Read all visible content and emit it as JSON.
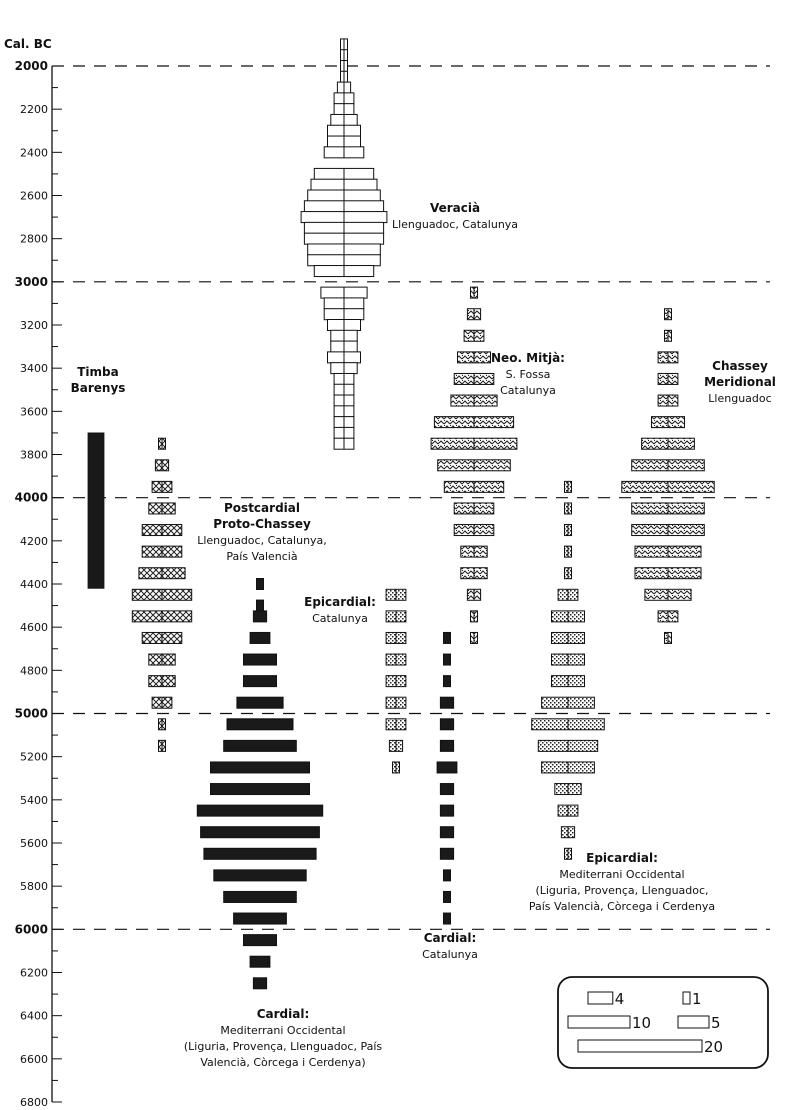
{
  "chart_data": {
    "type": "bar",
    "orientation": "horizontal-battleship",
    "y_axis_label": "Cal. BC",
    "y_range": [
      1950,
      6800
    ],
    "y_ticks": [
      2000,
      2200,
      2400,
      2600,
      2800,
      3000,
      3200,
      3400,
      3600,
      3800,
      4000,
      4200,
      4400,
      4600,
      4800,
      5000,
      5200,
      5400,
      5600,
      5800,
      6000,
      6200,
      6400,
      6600,
      6800
    ],
    "y_bold_ticks": [
      2000,
      3000,
      4000,
      5000,
      6000
    ],
    "dashed_lines": [
      2000,
      3000,
      4000,
      5000,
      6000
    ],
    "legend": {
      "entries": [
        {
          "label": "4",
          "value": 4
        },
        {
          "label": "1",
          "value": 1
        },
        {
          "label": "10",
          "value": 10
        },
        {
          "label": "5",
          "value": 5
        },
        {
          "label": "20",
          "value": 20
        }
      ]
    },
    "groups": [
      {
        "id": "veracia",
        "pattern": "white",
        "center_x": 344,
        "title": [
          "Veracià"
        ],
        "subtitle": [
          "Llenguadoc, Catalunya"
        ],
        "ages": [
          1900,
          1950,
          2000,
          2050,
          2100,
          2150,
          2200,
          2250,
          2300,
          2350,
          2400,
          2450,
          2500,
          2550,
          2600,
          2650,
          2700,
          2750,
          2800,
          2850,
          2900,
          2950,
          3000,
          3050,
          3100,
          3150,
          3200,
          3250,
          3300,
          3350,
          3400,
          3450,
          3500,
          3550,
          3600,
          3650,
          3700,
          3750
        ],
        "values": [
          1,
          1,
          1,
          1,
          2,
          3,
          3,
          4,
          5,
          5,
          6,
          0,
          9,
          10,
          11,
          12,
          13,
          12,
          12,
          11,
          11,
          9,
          0,
          7,
          6,
          6,
          5,
          4,
          4,
          5,
          4,
          3,
          3,
          3,
          3,
          3,
          3,
          3
        ]
      },
      {
        "id": "timba-barenys",
        "pattern": "black-vertical",
        "title": [
          "Timba",
          "Barenys"
        ],
        "subtitle": [],
        "range": [
          3700,
          4420
        ]
      },
      {
        "id": "postcardial",
        "pattern": "crosshatch",
        "center_x": 162,
        "title": [
          "Postcardial",
          "Proto-Chassey"
        ],
        "subtitle": [
          "Llenguadoc, Catalunya,",
          "País Valencià"
        ],
        "ages": [
          3750,
          3850,
          3950,
          4050,
          4150,
          4250,
          4350,
          4450,
          4550,
          4650,
          4750,
          4850,
          4950,
          5050,
          5150
        ],
        "values": [
          1,
          2,
          3,
          4,
          6,
          6,
          7,
          9,
          9,
          6,
          4,
          4,
          3,
          1,
          1
        ]
      },
      {
        "id": "cardial-mediterrani",
        "pattern": "black",
        "center_x": 260,
        "title": [
          "Cardial:"
        ],
        "subtitle": [
          "Mediterrani Occidental",
          "(Liguria, Provença, Llenguadoc, País",
          "Valencià, Còrcega i Cerdenya)"
        ],
        "ages": [
          4400,
          4500,
          4550,
          4650,
          4750,
          4850,
          4950,
          5050,
          5150,
          5250,
          5350,
          5450,
          5550,
          5650,
          5750,
          5850,
          5950,
          6050,
          6150,
          6250
        ],
        "values": [
          0.5,
          1,
          2,
          3,
          5,
          5,
          7,
          10,
          11,
          15,
          15,
          19,
          18,
          17,
          14,
          11,
          8,
          5,
          3,
          2
        ]
      },
      {
        "id": "epicardial-catalunya",
        "pattern": "stipple",
        "center_x": 396,
        "title": [
          "Epicardial:"
        ],
        "subtitle": [
          "Catalunya"
        ],
        "ages": [
          4450,
          4550,
          4650,
          4750,
          4850,
          4950,
          5050,
          5150,
          5250
        ],
        "values": [
          3,
          3,
          3,
          3,
          3,
          3,
          3,
          2,
          1
        ]
      },
      {
        "id": "cardial-catalunya",
        "pattern": "black",
        "center_x": 447,
        "title": [
          "Cardial:"
        ],
        "subtitle": [
          "Catalunya"
        ],
        "ages": [
          4650,
          4750,
          4850,
          4950,
          5050,
          5150,
          5250,
          5350,
          5450,
          5550,
          5650,
          5750,
          5850,
          5950
        ],
        "values": [
          0.5,
          0.5,
          1,
          2,
          2,
          2,
          3,
          2,
          2,
          2,
          2,
          1,
          0.5,
          0.5
        ]
      },
      {
        "id": "neo-mitja",
        "pattern": "zigzag",
        "center_x": 474,
        "title": [
          "Neo. Mitjà:"
        ],
        "subtitle": [
          "S. Fossa",
          "Catalunya"
        ],
        "ages": [
          3050,
          3150,
          3250,
          3350,
          3450,
          3550,
          3650,
          3750,
          3850,
          3950,
          4050,
          4150,
          4250,
          4350,
          4450,
          4550,
          4650
        ],
        "values": [
          0.5,
          2,
          3,
          5,
          6,
          7,
          12,
          13,
          11,
          9,
          6,
          6,
          4,
          4,
          2,
          1,
          0.5
        ]
      },
      {
        "id": "chassey-meridional",
        "pattern": "zigzag",
        "center_x": 668,
        "title": [
          "Chassey",
          "Meridional"
        ],
        "subtitle": [
          "Llenguadoc"
        ],
        "ages": [
          3150,
          3250,
          3350,
          3450,
          3550,
          3650,
          3750,
          3850,
          3950,
          4050,
          4150,
          4250,
          4350,
          4450,
          4550,
          4650
        ],
        "values": [
          0.5,
          0.5,
          3,
          3,
          3,
          5,
          8,
          11,
          14,
          11,
          11,
          10,
          10,
          7,
          3,
          0.5
        ]
      },
      {
        "id": "epicardial-mediterrani",
        "pattern": "stipple",
        "center_x": 568,
        "title": [
          "Epicardial:"
        ],
        "subtitle": [
          "Mediterrani Occidental",
          "(Liguria, Provença, Llenguadoc,",
          "País Valencià, Còrcega i Cerdenya"
        ],
        "ages": [
          3950,
          4050,
          4150,
          4250,
          4350,
          4450,
          4550,
          4650,
          4750,
          4850,
          4950,
          5050,
          5150,
          5250,
          5350,
          5450,
          5550,
          5650
        ],
        "values": [
          0.5,
          0.5,
          1,
          1,
          1,
          3,
          5,
          5,
          5,
          5,
          8,
          11,
          9,
          8,
          4,
          3,
          2,
          1
        ]
      }
    ]
  }
}
